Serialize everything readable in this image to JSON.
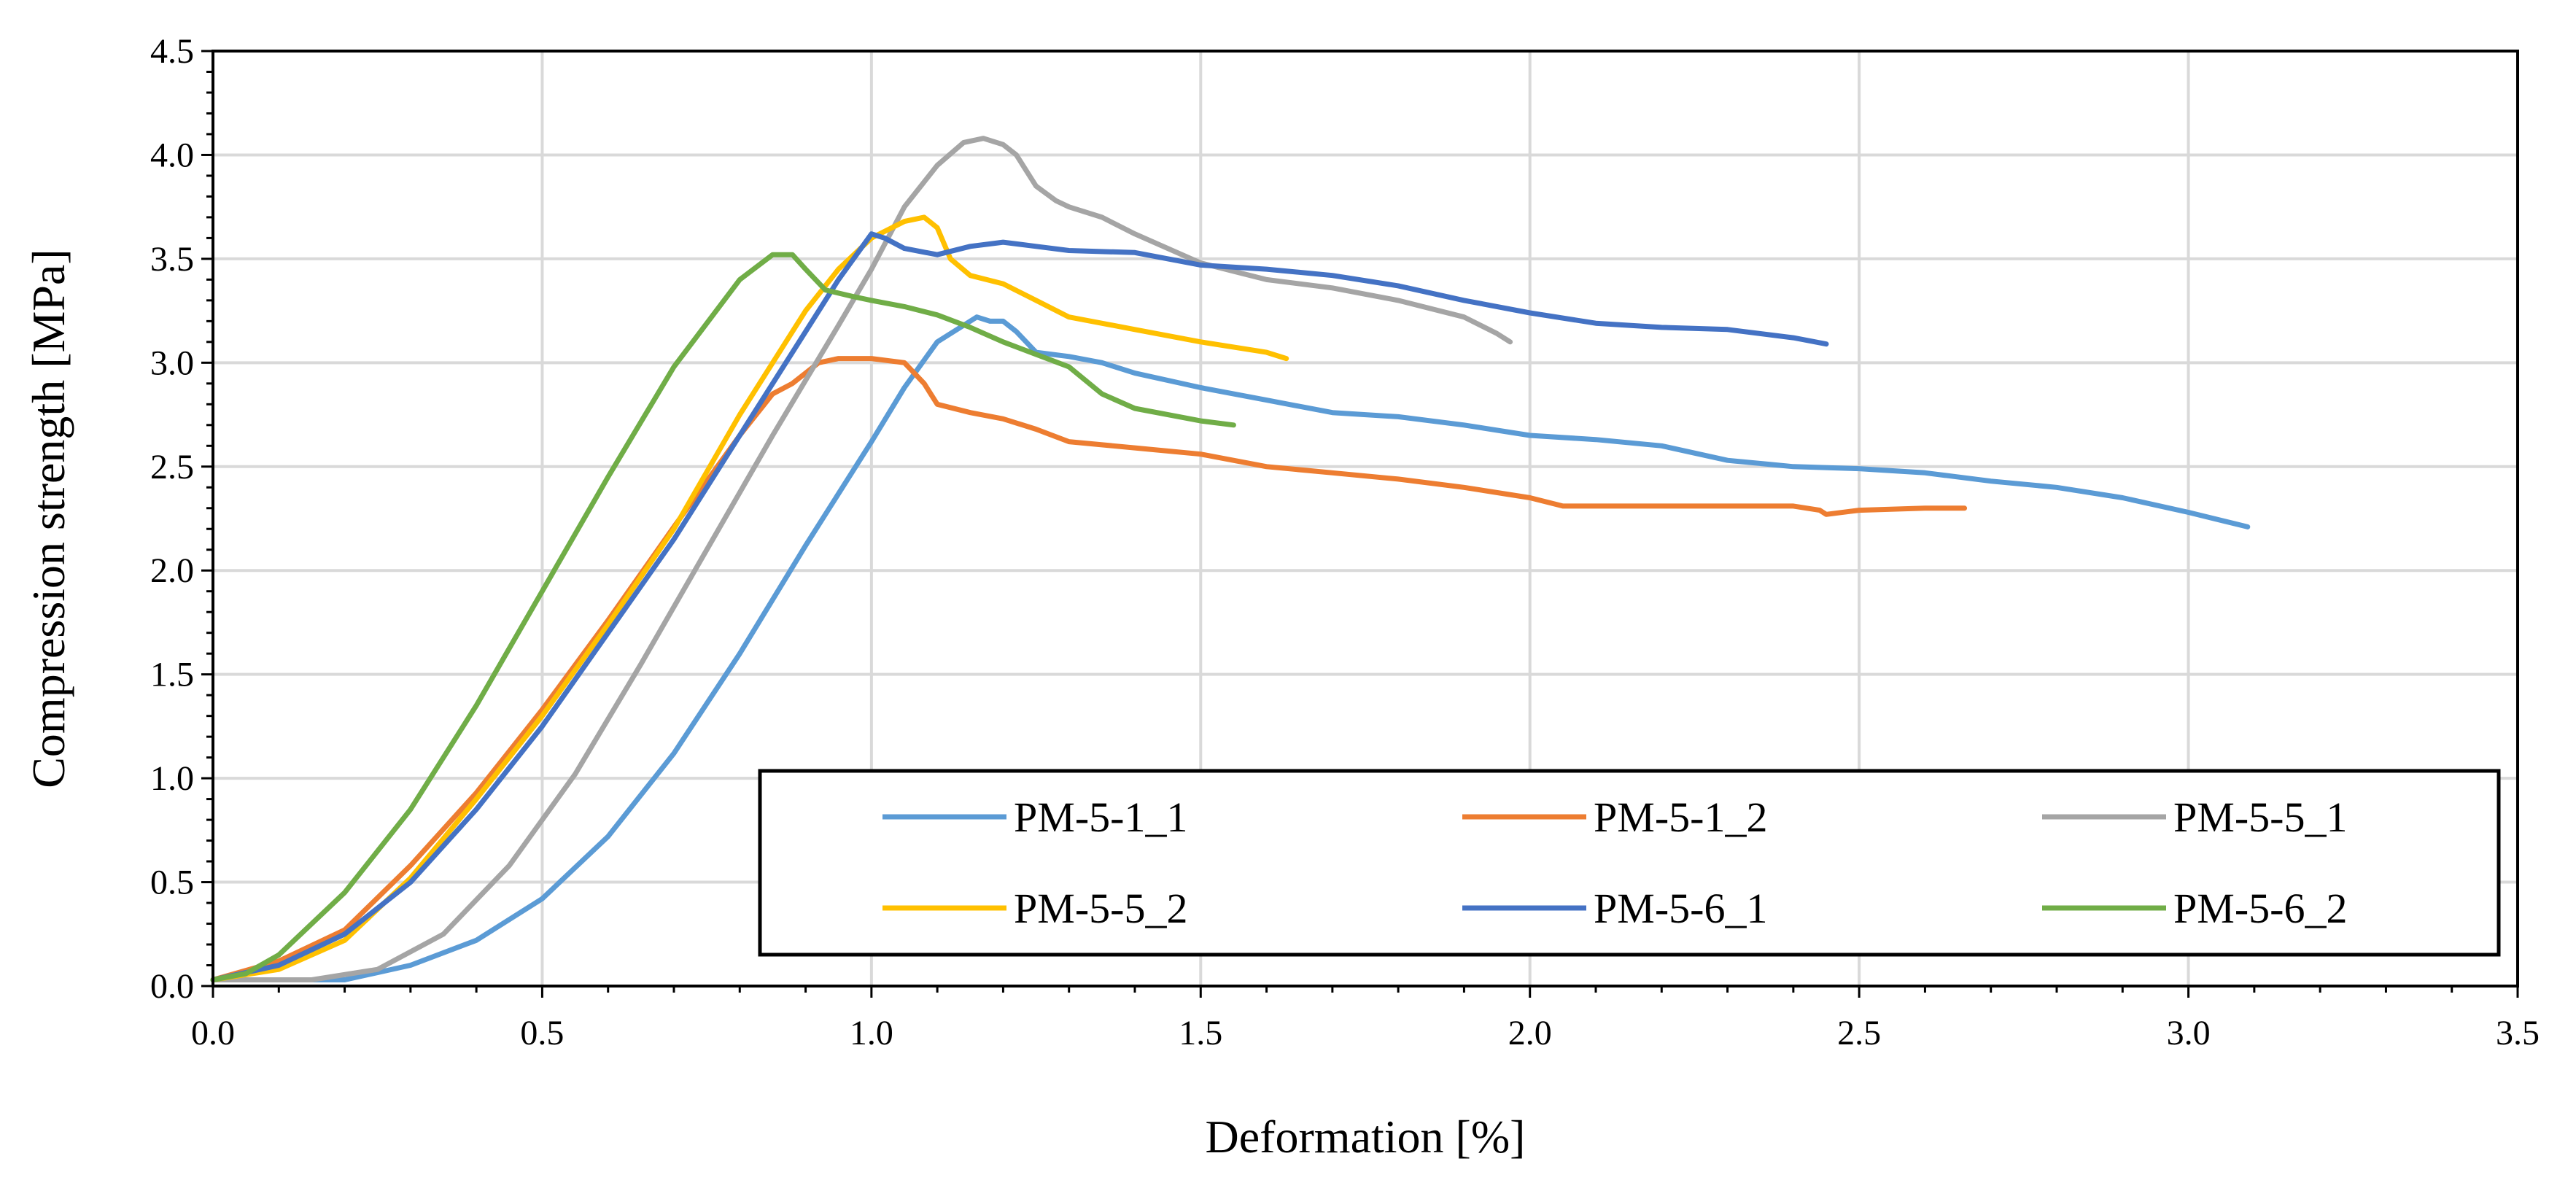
{
  "chart_data": {
    "type": "line",
    "title": "",
    "xlabel": "Deformation [%]",
    "ylabel": "Compression strength [MPa]",
    "xlim": [
      0,
      3.5
    ],
    "ylim": [
      0,
      4.5
    ],
    "x_ticks": [
      "0.0",
      "0.5",
      "1.0",
      "1.5",
      "2.0",
      "2.5",
      "3.0",
      "3.5"
    ],
    "y_ticks": [
      "0.0",
      "0.5",
      "1.0",
      "1.5",
      "2.0",
      "2.5",
      "3.0",
      "3.5",
      "4.0",
      "4.5"
    ],
    "grid": true,
    "legend_position": "bottom-right",
    "series": [
      {
        "name": "PM-5-1_1",
        "color": "#5b9bd5",
        "points": [
          [
            0,
            0.03
          ],
          [
            0.2,
            0.03
          ],
          [
            0.3,
            0.1
          ],
          [
            0.4,
            0.22
          ],
          [
            0.5,
            0.42
          ],
          [
            0.6,
            0.72
          ],
          [
            0.7,
            1.12
          ],
          [
            0.8,
            1.6
          ],
          [
            0.9,
            2.12
          ],
          [
            1.0,
            2.62
          ],
          [
            1.05,
            2.88
          ],
          [
            1.1,
            3.1
          ],
          [
            1.16,
            3.22
          ],
          [
            1.18,
            3.2
          ],
          [
            1.2,
            3.2
          ],
          [
            1.22,
            3.15
          ],
          [
            1.25,
            3.05
          ],
          [
            1.3,
            3.03
          ],
          [
            1.35,
            3.0
          ],
          [
            1.4,
            2.95
          ],
          [
            1.5,
            2.88
          ],
          [
            1.6,
            2.82
          ],
          [
            1.7,
            2.76
          ],
          [
            1.8,
            2.74
          ],
          [
            1.9,
            2.7
          ],
          [
            2.0,
            2.65
          ],
          [
            2.1,
            2.63
          ],
          [
            2.2,
            2.6
          ],
          [
            2.3,
            2.53
          ],
          [
            2.4,
            2.5
          ],
          [
            2.5,
            2.49
          ],
          [
            2.6,
            2.47
          ],
          [
            2.7,
            2.43
          ],
          [
            2.8,
            2.4
          ],
          [
            2.9,
            2.35
          ],
          [
            3.0,
            2.28
          ],
          [
            3.09,
            2.21
          ]
        ]
      },
      {
        "name": "PM-5-1_2",
        "color": "#ed7d31",
        "points": [
          [
            0,
            0.03
          ],
          [
            0.1,
            0.12
          ],
          [
            0.2,
            0.27
          ],
          [
            0.3,
            0.58
          ],
          [
            0.4,
            0.93
          ],
          [
            0.5,
            1.33
          ],
          [
            0.6,
            1.76
          ],
          [
            0.7,
            2.21
          ],
          [
            0.8,
            2.65
          ],
          [
            0.85,
            2.85
          ],
          [
            0.88,
            2.9
          ],
          [
            0.92,
            3.0
          ],
          [
            0.95,
            3.02
          ],
          [
            1.0,
            3.02
          ],
          [
            1.05,
            3.0
          ],
          [
            1.08,
            2.9
          ],
          [
            1.1,
            2.8
          ],
          [
            1.15,
            2.76
          ],
          [
            1.2,
            2.73
          ],
          [
            1.25,
            2.68
          ],
          [
            1.3,
            2.62
          ],
          [
            1.4,
            2.59
          ],
          [
            1.5,
            2.56
          ],
          [
            1.6,
            2.5
          ],
          [
            1.7,
            2.47
          ],
          [
            1.8,
            2.44
          ],
          [
            1.9,
            2.4
          ],
          [
            2.0,
            2.35
          ],
          [
            2.05,
            2.31
          ],
          [
            2.1,
            2.31
          ],
          [
            2.2,
            2.31
          ],
          [
            2.3,
            2.31
          ],
          [
            2.4,
            2.31
          ],
          [
            2.44,
            2.29
          ],
          [
            2.45,
            2.27
          ],
          [
            2.5,
            2.29
          ],
          [
            2.6,
            2.3
          ],
          [
            2.66,
            2.3
          ]
        ]
      },
      {
        "name": "PM-5-5_1",
        "color": "#a5a5a5",
        "points": [
          [
            0,
            0.03
          ],
          [
            0.15,
            0.03
          ],
          [
            0.25,
            0.08
          ],
          [
            0.35,
            0.25
          ],
          [
            0.45,
            0.58
          ],
          [
            0.55,
            1.02
          ],
          [
            0.65,
            1.55
          ],
          [
            0.75,
            2.1
          ],
          [
            0.85,
            2.65
          ],
          [
            0.95,
            3.18
          ],
          [
            1.0,
            3.45
          ],
          [
            1.05,
            3.75
          ],
          [
            1.1,
            3.95
          ],
          [
            1.14,
            4.06
          ],
          [
            1.17,
            4.08
          ],
          [
            1.2,
            4.05
          ],
          [
            1.22,
            4.0
          ],
          [
            1.25,
            3.85
          ],
          [
            1.28,
            3.78
          ],
          [
            1.3,
            3.75
          ],
          [
            1.35,
            3.7
          ],
          [
            1.4,
            3.62
          ],
          [
            1.5,
            3.48
          ],
          [
            1.6,
            3.4
          ],
          [
            1.7,
            3.36
          ],
          [
            1.8,
            3.3
          ],
          [
            1.9,
            3.22
          ],
          [
            1.95,
            3.14
          ],
          [
            1.97,
            3.1
          ]
        ]
      },
      {
        "name": "PM-5-5_2",
        "color": "#ffc000",
        "points": [
          [
            0,
            0.03
          ],
          [
            0.1,
            0.08
          ],
          [
            0.2,
            0.22
          ],
          [
            0.3,
            0.52
          ],
          [
            0.4,
            0.9
          ],
          [
            0.5,
            1.3
          ],
          [
            0.6,
            1.74
          ],
          [
            0.7,
            2.2
          ],
          [
            0.8,
            2.75
          ],
          [
            0.9,
            3.25
          ],
          [
            0.95,
            3.45
          ],
          [
            1.0,
            3.6
          ],
          [
            1.05,
            3.68
          ],
          [
            1.08,
            3.7
          ],
          [
            1.1,
            3.65
          ],
          [
            1.12,
            3.5
          ],
          [
            1.15,
            3.42
          ],
          [
            1.2,
            3.38
          ],
          [
            1.25,
            3.3
          ],
          [
            1.3,
            3.22
          ],
          [
            1.4,
            3.16
          ],
          [
            1.5,
            3.1
          ],
          [
            1.6,
            3.05
          ],
          [
            1.63,
            3.02
          ]
        ]
      },
      {
        "name": "PM-5-6_1",
        "color": "#4472c4",
        "points": [
          [
            0,
            0.03
          ],
          [
            0.1,
            0.1
          ],
          [
            0.2,
            0.25
          ],
          [
            0.3,
            0.5
          ],
          [
            0.4,
            0.85
          ],
          [
            0.5,
            1.25
          ],
          [
            0.6,
            1.7
          ],
          [
            0.7,
            2.15
          ],
          [
            0.8,
            2.65
          ],
          [
            0.9,
            3.15
          ],
          [
            0.95,
            3.4
          ],
          [
            1.0,
            3.62
          ],
          [
            1.02,
            3.6
          ],
          [
            1.05,
            3.55
          ],
          [
            1.1,
            3.52
          ],
          [
            1.15,
            3.56
          ],
          [
            1.2,
            3.58
          ],
          [
            1.25,
            3.56
          ],
          [
            1.3,
            3.54
          ],
          [
            1.4,
            3.53
          ],
          [
            1.5,
            3.47
          ],
          [
            1.6,
            3.45
          ],
          [
            1.7,
            3.42
          ],
          [
            1.8,
            3.37
          ],
          [
            1.9,
            3.3
          ],
          [
            2.0,
            3.24
          ],
          [
            2.1,
            3.19
          ],
          [
            2.2,
            3.17
          ],
          [
            2.3,
            3.16
          ],
          [
            2.4,
            3.12
          ],
          [
            2.45,
            3.09
          ]
        ]
      },
      {
        "name": "PM-5-6_2",
        "color": "#70ad47",
        "points": [
          [
            0,
            0.03
          ],
          [
            0.05,
            0.06
          ],
          [
            0.1,
            0.15
          ],
          [
            0.2,
            0.45
          ],
          [
            0.3,
            0.85
          ],
          [
            0.4,
            1.35
          ],
          [
            0.5,
            1.9
          ],
          [
            0.6,
            2.45
          ],
          [
            0.7,
            2.98
          ],
          [
            0.8,
            3.4
          ],
          [
            0.85,
            3.52
          ],
          [
            0.88,
            3.52
          ],
          [
            0.9,
            3.45
          ],
          [
            0.93,
            3.35
          ],
          [
            0.97,
            3.32
          ],
          [
            1.0,
            3.3
          ],
          [
            1.05,
            3.27
          ],
          [
            1.1,
            3.23
          ],
          [
            1.15,
            3.17
          ],
          [
            1.2,
            3.1
          ],
          [
            1.3,
            2.98
          ],
          [
            1.35,
            2.85
          ],
          [
            1.4,
            2.78
          ],
          [
            1.5,
            2.72
          ],
          [
            1.55,
            2.7
          ]
        ]
      }
    ]
  }
}
